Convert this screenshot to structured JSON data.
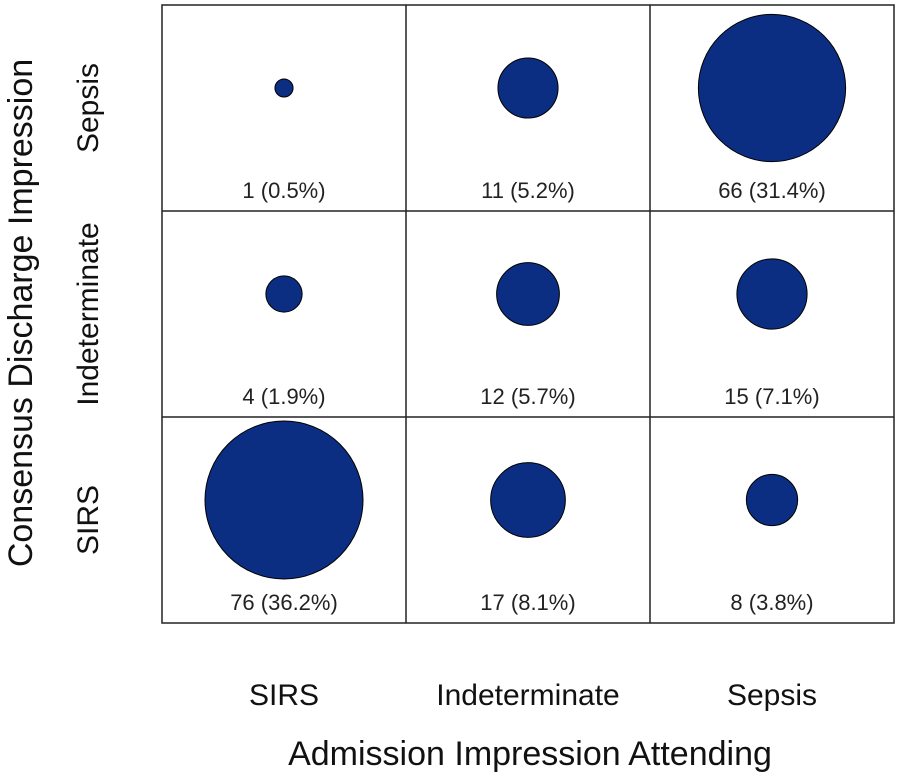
{
  "chart_data": {
    "type": "bubble",
    "x_categories": [
      "SIRS",
      "Indeterminate",
      "Sepsis"
    ],
    "y_categories": [
      "Sepsis",
      "Indeterminate",
      "SIRS"
    ],
    "xlabel": "Admission Impression Attending",
    "ylabel": "Consensus Discharge Impression",
    "cells": [
      {
        "x": "SIRS",
        "y": "Sepsis",
        "count": 1,
        "percent": 0.5,
        "label": "1 (0.5%)"
      },
      {
        "x": "Indeterminate",
        "y": "Sepsis",
        "count": 11,
        "percent": 5.2,
        "label": "11 (5.2%)"
      },
      {
        "x": "Sepsis",
        "y": "Sepsis",
        "count": 66,
        "percent": 31.4,
        "label": "66 (31.4%)"
      },
      {
        "x": "SIRS",
        "y": "Indeterminate",
        "count": 4,
        "percent": 1.9,
        "label": "4 (1.9%)"
      },
      {
        "x": "Indeterminate",
        "y": "Indeterminate",
        "count": 12,
        "percent": 5.7,
        "label": "12 (5.7%)"
      },
      {
        "x": "Sepsis",
        "y": "Indeterminate",
        "count": 15,
        "percent": 7.1,
        "label": "15 (7.1%)"
      },
      {
        "x": "SIRS",
        "y": "SIRS",
        "count": 76,
        "percent": 36.2,
        "label": "76 (36.2%)"
      },
      {
        "x": "Indeterminate",
        "y": "SIRS",
        "count": 17,
        "percent": 8.1,
        "label": "17 (8.1%)"
      },
      {
        "x": "Sepsis",
        "y": "SIRS",
        "count": 8,
        "percent": 3.8,
        "label": "8 (3.8%)"
      }
    ],
    "bubble_color": "#0b2d82",
    "grid": true
  }
}
